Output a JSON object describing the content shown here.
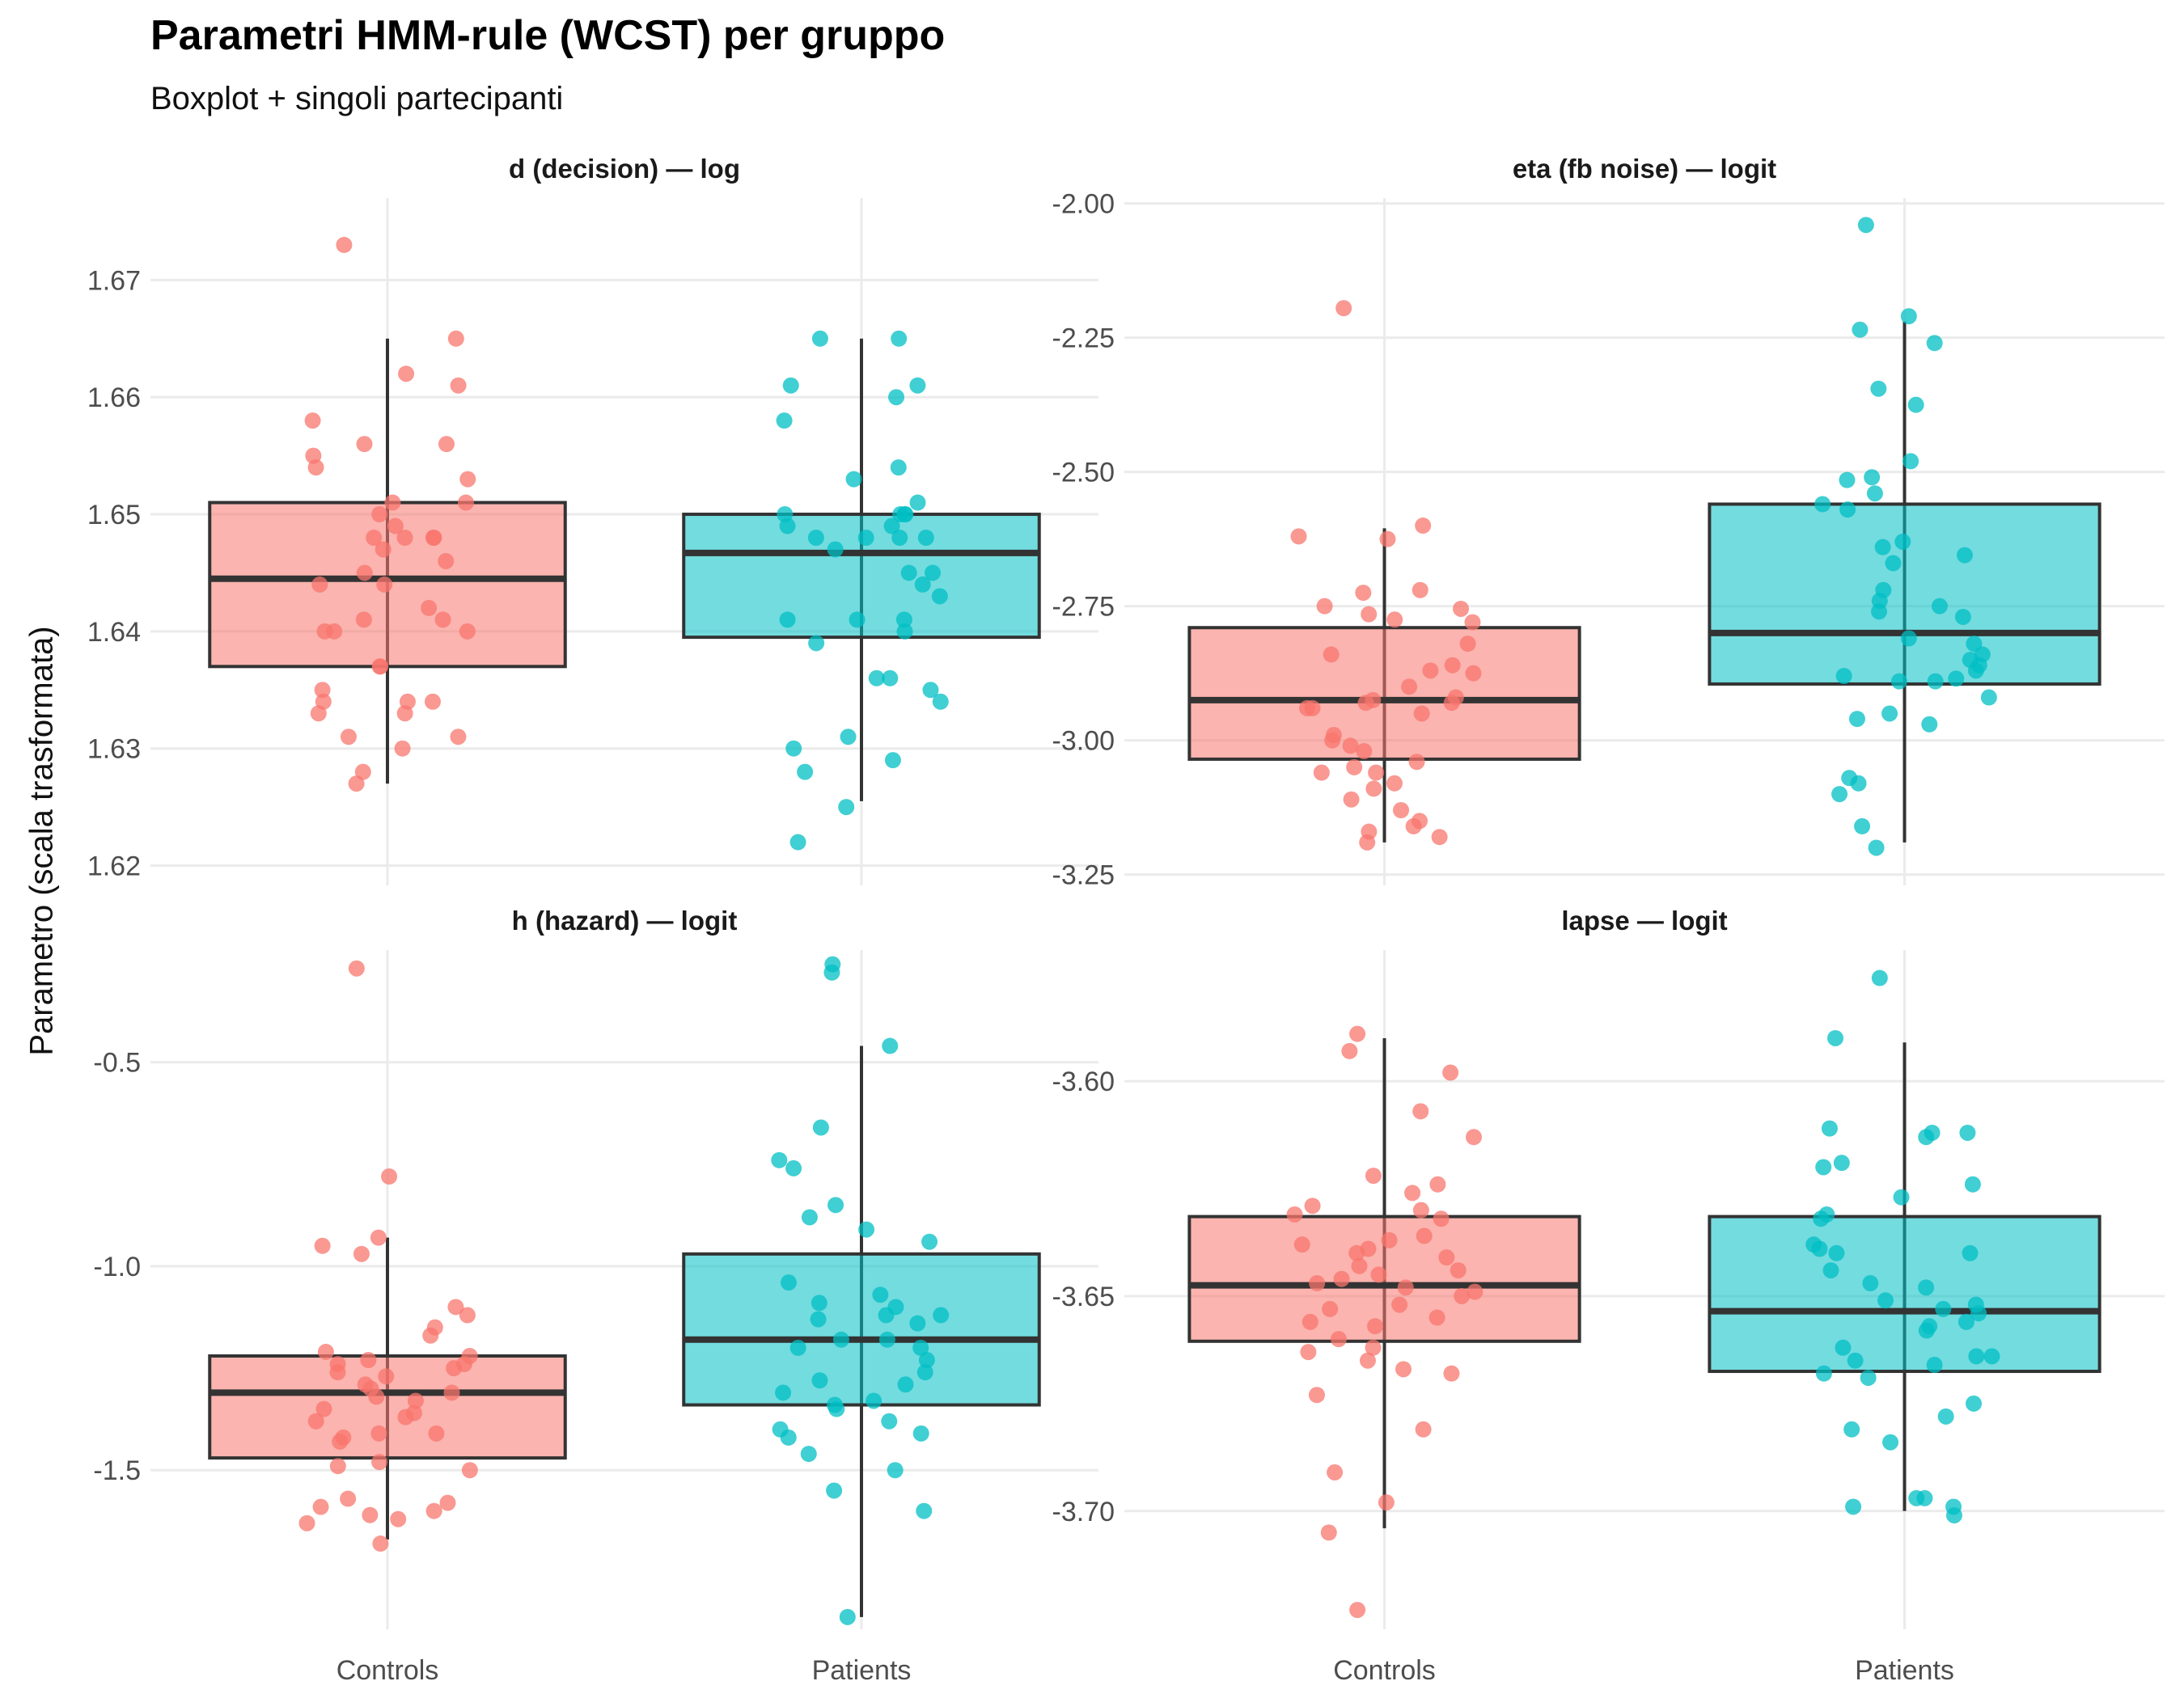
{
  "title": "Parametri HMM-rule (WCST) per gruppo",
  "subtitle": "Boxplot + singoli partecipanti",
  "ylabel": "Parametro (scala trasformata)",
  "colors": {
    "Controls": "#F8766D",
    "Patients": "#00BFC4",
    "grid": "#ebebeb",
    "box_line": "#333333"
  },
  "chart_data": [
    {
      "type": "box",
      "title": "d (decision) — log",
      "categories": [
        "Controls",
        "Patients"
      ],
      "ylim": [
        1.619,
        1.677
      ],
      "yticks": [
        "1.62",
        "1.63",
        "1.64",
        "1.65",
        "1.66",
        "1.67"
      ],
      "show_x_labels": false,
      "boxes": [
        {
          "group": "Controls",
          "whisker_low": 1.627,
          "q1": 1.637,
          "median": 1.6445,
          "q3": 1.651,
          "whisker_high": 1.665
        },
        {
          "group": "Patients",
          "whisker_low": 1.6255,
          "q1": 1.6395,
          "median": 1.6467,
          "q3": 1.65,
          "whisker_high": 1.665
        }
      ],
      "points": [
        {
          "group": "Controls",
          "values": [
            1.673,
            1.665,
            1.662,
            1.661,
            1.658,
            1.656,
            1.656,
            1.655,
            1.654,
            1.653,
            1.651,
            1.651,
            1.65,
            1.649,
            1.648,
            1.648,
            1.648,
            1.648,
            1.647,
            1.646,
            1.645,
            1.644,
            1.644,
            1.642,
            1.641,
            1.641,
            1.64,
            1.64,
            1.64,
            1.637,
            1.637,
            1.635,
            1.634,
            1.634,
            1.634,
            1.633,
            1.633,
            1.631,
            1.631,
            1.63,
            1.628,
            1.627
          ]
        },
        {
          "group": "Patients",
          "values": [
            1.665,
            1.665,
            1.661,
            1.661,
            1.66,
            1.658,
            1.654,
            1.653,
            1.651,
            1.65,
            1.65,
            1.65,
            1.65,
            1.649,
            1.649,
            1.648,
            1.648,
            1.648,
            1.648,
            1.647,
            1.645,
            1.645,
            1.644,
            1.643,
            1.641,
            1.641,
            1.641,
            1.64,
            1.639,
            1.636,
            1.636,
            1.635,
            1.634,
            1.631,
            1.63,
            1.629,
            1.628,
            1.625,
            1.622
          ]
        }
      ]
    },
    {
      "type": "box",
      "title": "eta (fb noise) — logit",
      "categories": [
        "Controls",
        "Patients"
      ],
      "ylim": [
        -3.255,
        -1.99
      ],
      "yticks": [
        "-3.25",
        "-3.00",
        "-2.75",
        "-2.50",
        "-2.25",
        "-2.00"
      ],
      "show_x_labels": false,
      "boxes": [
        {
          "group": "Controls",
          "whisker_low": -3.19,
          "q1": -3.035,
          "median": -2.925,
          "q3": -2.79,
          "whisker_high": -2.605
        },
        {
          "group": "Patients",
          "whisker_low": -3.19,
          "q1": -2.895,
          "median": -2.8,
          "q3": -2.56,
          "whisker_high": -2.22
        }
      ],
      "points": [
        {
          "group": "Controls",
          "values": [
            -2.195,
            -2.6,
            -2.62,
            -2.625,
            -2.72,
            -2.725,
            -2.75,
            -2.755,
            -2.765,
            -2.775,
            -2.78,
            -2.82,
            -2.84,
            -2.86,
            -2.87,
            -2.875,
            -2.9,
            -2.92,
            -2.925,
            -2.93,
            -2.93,
            -2.94,
            -2.94,
            -2.95,
            -2.99,
            -3.0,
            -3.01,
            -3.02,
            -3.04,
            -3.05,
            -3.06,
            -3.06,
            -3.08,
            -3.09,
            -3.11,
            -3.13,
            -3.15,
            -3.16,
            -3.17,
            -3.18,
            -3.19
          ]
        },
        {
          "group": "Patients",
          "values": [
            -2.04,
            -2.21,
            -2.235,
            -2.26,
            -2.345,
            -2.375,
            -2.48,
            -2.51,
            -2.515,
            -2.54,
            -2.56,
            -2.57,
            -2.63,
            -2.64,
            -2.655,
            -2.67,
            -2.72,
            -2.74,
            -2.75,
            -2.76,
            -2.77,
            -2.81,
            -2.82,
            -2.84,
            -2.85,
            -2.86,
            -2.87,
            -2.88,
            -2.885,
            -2.89,
            -2.89,
            -2.92,
            -2.95,
            -2.96,
            -2.97,
            -3.07,
            -3.08,
            -3.1,
            -3.16,
            -3.2
          ]
        }
      ]
    },
    {
      "type": "box",
      "title": "h (hazard) — logit",
      "categories": [
        "Controls",
        "Patients"
      ],
      "ylim": [
        -1.89,
        -0.225
      ],
      "yticks": [
        "-1.5",
        "-1.0",
        "-0.5"
      ],
      "show_x_labels": true,
      "boxes": [
        {
          "group": "Controls",
          "whisker_low": -1.67,
          "q1": -1.47,
          "median": -1.31,
          "q3": -1.22,
          "whisker_high": -0.93
        },
        {
          "group": "Patients",
          "whisker_low": -1.86,
          "q1": -1.34,
          "median": -1.18,
          "q3": -0.97,
          "whisker_high": -0.46
        }
      ],
      "points": [
        {
          "group": "Controls",
          "values": [
            -0.27,
            -0.78,
            -0.93,
            -0.95,
            -0.97,
            -1.1,
            -1.12,
            -1.15,
            -1.17,
            -1.21,
            -1.22,
            -1.23,
            -1.24,
            -1.24,
            -1.25,
            -1.26,
            -1.27,
            -1.29,
            -1.3,
            -1.31,
            -1.32,
            -1.33,
            -1.35,
            -1.36,
            -1.37,
            -1.38,
            -1.41,
            -1.41,
            -1.42,
            -1.43,
            -1.48,
            -1.49,
            -1.5,
            -1.57,
            -1.58,
            -1.59,
            -1.6,
            -1.61,
            -1.62,
            -1.63,
            -1.68
          ]
        },
        {
          "group": "Patients",
          "values": [
            -0.26,
            -0.28,
            -0.46,
            -0.66,
            -0.74,
            -0.76,
            -0.85,
            -0.88,
            -0.91,
            -0.94,
            -1.04,
            -1.07,
            -1.09,
            -1.1,
            -1.12,
            -1.12,
            -1.13,
            -1.14,
            -1.18,
            -1.18,
            -1.2,
            -1.2,
            -1.23,
            -1.26,
            -1.28,
            -1.29,
            -1.31,
            -1.33,
            -1.34,
            -1.35,
            -1.38,
            -1.4,
            -1.41,
            -1.42,
            -1.46,
            -1.5,
            -1.55,
            -1.6,
            -1.86
          ]
        }
      ]
    },
    {
      "type": "box",
      "title": "lapse — logit",
      "categories": [
        "Controls",
        "Patients"
      ],
      "ylim": [
        -3.7275,
        -3.5695
      ],
      "yticks": [
        "-3.70",
        "-3.65",
        "-3.60"
      ],
      "show_x_labels": true,
      "boxes": [
        {
          "group": "Controls",
          "whisker_low": -3.704,
          "q1": -3.6605,
          "median": -3.6475,
          "q3": -3.6315,
          "whisker_high": -3.59
        },
        {
          "group": "Patients",
          "whisker_low": -3.7,
          "q1": -3.6675,
          "median": -3.6535,
          "q3": -3.6315,
          "whisker_high": -3.591
        }
      ],
      "points": [
        {
          "group": "Controls",
          "values": [
            -3.589,
            -3.593,
            -3.598,
            -3.607,
            -3.613,
            -3.622,
            -3.624,
            -3.626,
            -3.629,
            -3.63,
            -3.631,
            -3.632,
            -3.636,
            -3.637,
            -3.638,
            -3.639,
            -3.64,
            -3.641,
            -3.643,
            -3.644,
            -3.645,
            -3.646,
            -3.647,
            -3.648,
            -3.649,
            -3.65,
            -3.652,
            -3.653,
            -3.655,
            -3.656,
            -3.657,
            -3.66,
            -3.662,
            -3.663,
            -3.665,
            -3.667,
            -3.668,
            -3.673,
            -3.681,
            -3.691,
            -3.698,
            -3.705,
            -3.723
          ]
        },
        {
          "group": "Patients",
          "values": [
            -3.576,
            -3.59,
            -3.611,
            -3.612,
            -3.612,
            -3.613,
            -3.619,
            -3.62,
            -3.624,
            -3.627,
            -3.631,
            -3.632,
            -3.638,
            -3.639,
            -3.64,
            -3.64,
            -3.644,
            -3.647,
            -3.648,
            -3.651,
            -3.652,
            -3.653,
            -3.654,
            -3.656,
            -3.657,
            -3.658,
            -3.662,
            -3.664,
            -3.664,
            -3.665,
            -3.666,
            -3.668,
            -3.669,
            -3.675,
            -3.678,
            -3.681,
            -3.684,
            -3.697,
            -3.697,
            -3.699,
            -3.699,
            -3.701
          ]
        }
      ]
    }
  ]
}
